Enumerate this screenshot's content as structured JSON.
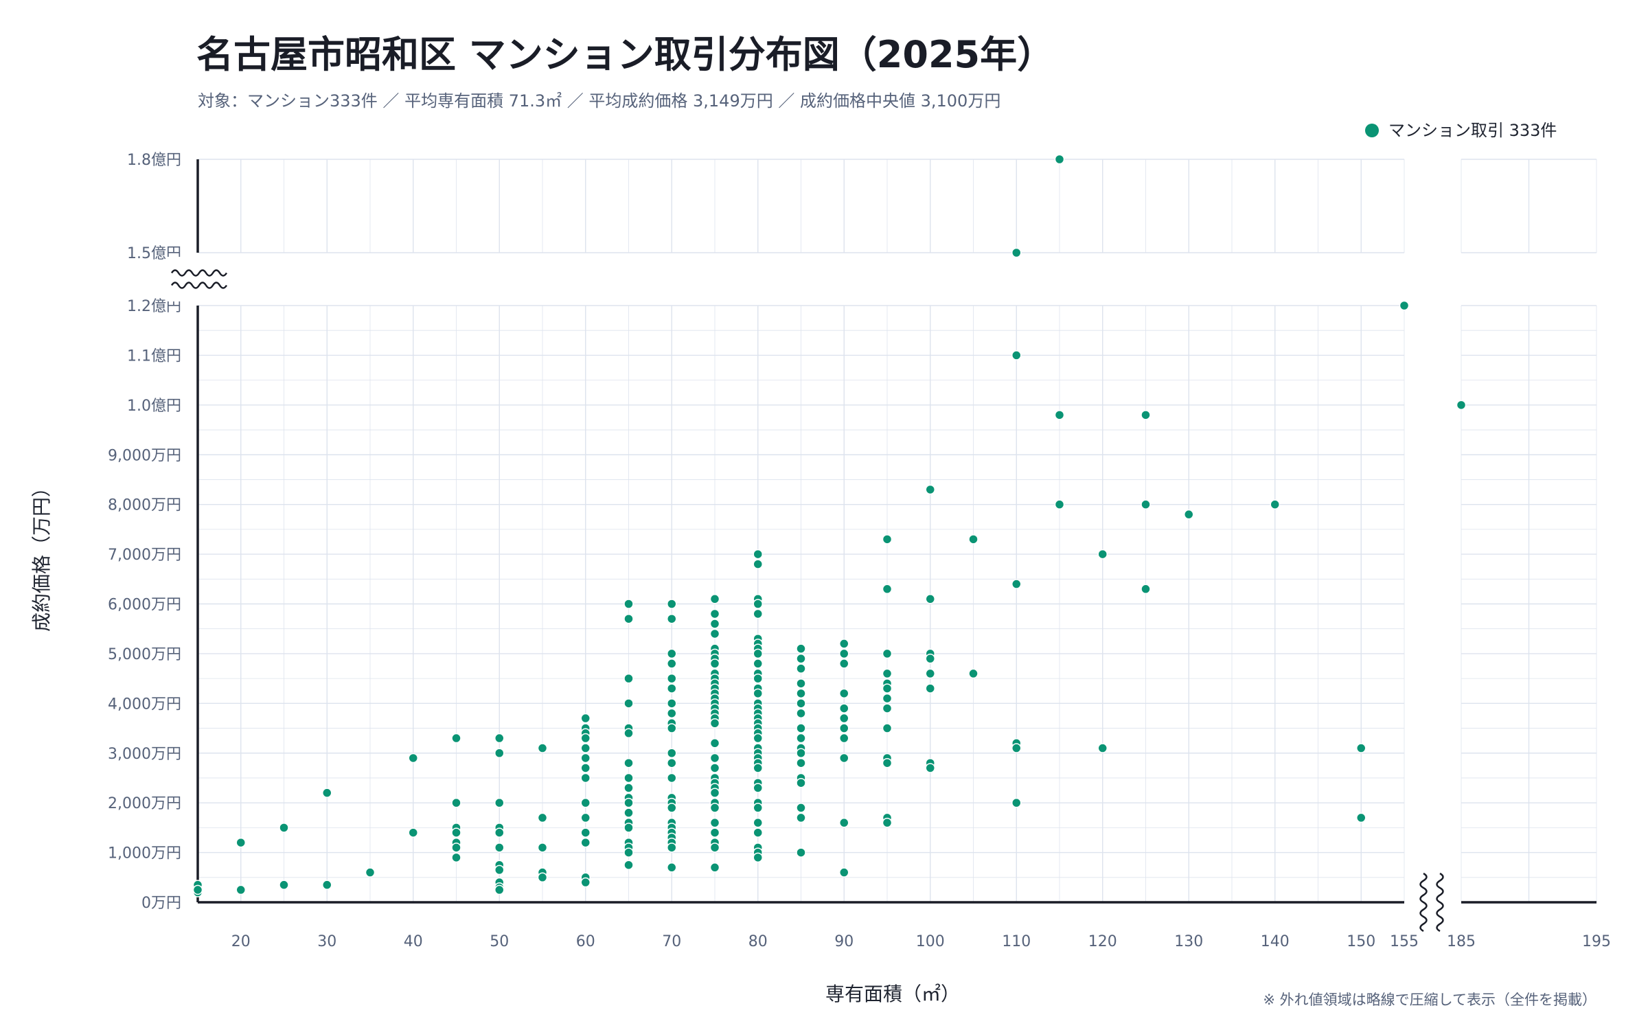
{
  "title": "名古屋市昭和区 マンション取引分布図（2025年）",
  "subtitle": "対象：マンション333件 ／ 平均専有面積 71.3㎡ ／ 平均成約価格 3,149万円 ／ 成約価格中央値 3,100万円",
  "legend_label": "マンション取引 333件",
  "note": "※ 外れ値領域は略線で圧縮して表示（全件を掲載）",
  "colors": {
    "point": "#0a9474",
    "grid": "#dde3ee",
    "axis": "#1a1d27",
    "text": "#56627a"
  },
  "chart_data": {
    "type": "scatter",
    "title": "名古屋市昭和区 マンション取引分布図（2025年）",
    "xlabel": "専有面積（㎡）",
    "ylabel": "成約価格（万円）",
    "xlim": [
      15,
      195
    ],
    "x_break": [
      155,
      185
    ],
    "ylim": [
      0,
      18000
    ],
    "y_break": [
      12000,
      15000
    ],
    "grid": true,
    "legend": "top-right",
    "x_ticks": [
      {
        "v": 20,
        "t": "20"
      },
      {
        "v": 30,
        "t": "30"
      },
      {
        "v": 40,
        "t": "40"
      },
      {
        "v": 50,
        "t": "50"
      },
      {
        "v": 60,
        "t": "60"
      },
      {
        "v": 70,
        "t": "70"
      },
      {
        "v": 80,
        "t": "80"
      },
      {
        "v": 90,
        "t": "90"
      },
      {
        "v": 100,
        "t": "100"
      },
      {
        "v": 110,
        "t": "110"
      },
      {
        "v": 120,
        "t": "120"
      },
      {
        "v": 130,
        "t": "130"
      },
      {
        "v": 140,
        "t": "140"
      },
      {
        "v": 150,
        "t": "150"
      },
      {
        "v": 155,
        "t": "155"
      },
      {
        "v": 185,
        "t": "185"
      },
      {
        "v": 195,
        "t": "195"
      }
    ],
    "y_ticks": [
      {
        "v": 0,
        "t": "0万円"
      },
      {
        "v": 1000,
        "t": "1,000万円"
      },
      {
        "v": 2000,
        "t": "2,000万円"
      },
      {
        "v": 3000,
        "t": "3,000万円"
      },
      {
        "v": 4000,
        "t": "4,000万円"
      },
      {
        "v": 5000,
        "t": "5,000万円"
      },
      {
        "v": 6000,
        "t": "6,000万円"
      },
      {
        "v": 7000,
        "t": "7,000万円"
      },
      {
        "v": 8000,
        "t": "8,000万円"
      },
      {
        "v": 9000,
        "t": "9,000万円"
      },
      {
        "v": 10000,
        "t": "1.0億円"
      },
      {
        "v": 11000,
        "t": "1.1億円"
      },
      {
        "v": 12000,
        "t": "1.2億円"
      },
      {
        "v": 15000,
        "t": "1.5億円"
      },
      {
        "v": 18000,
        "t": "1.8億円"
      }
    ],
    "series": [
      {
        "name": "マンション取引 333件",
        "points": [
          [
            15,
            350
          ],
          [
            15,
            200
          ],
          [
            15,
            250
          ],
          [
            20,
            1200
          ],
          [
            20,
            250
          ],
          [
            25,
            1500
          ],
          [
            25,
            350
          ],
          [
            30,
            2200
          ],
          [
            30,
            350
          ],
          [
            35,
            600
          ],
          [
            40,
            2900
          ],
          [
            40,
            1400
          ],
          [
            45,
            3300
          ],
          [
            45,
            2000
          ],
          [
            45,
            1500
          ],
          [
            45,
            1400
          ],
          [
            45,
            1200
          ],
          [
            45,
            1100
          ],
          [
            45,
            900
          ],
          [
            50,
            3300
          ],
          [
            50,
            3000
          ],
          [
            50,
            2000
          ],
          [
            50,
            1500
          ],
          [
            50,
            1400
          ],
          [
            50,
            1100
          ],
          [
            50,
            750
          ],
          [
            50,
            650
          ],
          [
            50,
            400
          ],
          [
            50,
            300
          ],
          [
            50,
            250
          ],
          [
            55,
            3100
          ],
          [
            55,
            1700
          ],
          [
            55,
            1100
          ],
          [
            55,
            600
          ],
          [
            55,
            500
          ],
          [
            60,
            3700
          ],
          [
            60,
            3500
          ],
          [
            60,
            3400
          ],
          [
            60,
            3300
          ],
          [
            60,
            3100
          ],
          [
            60,
            2900
          ],
          [
            60,
            2700
          ],
          [
            60,
            2500
          ],
          [
            60,
            2000
          ],
          [
            60,
            1700
          ],
          [
            60,
            1400
          ],
          [
            60,
            1200
          ],
          [
            60,
            500
          ],
          [
            60,
            400
          ],
          [
            65,
            6000
          ],
          [
            65,
            5700
          ],
          [
            65,
            4500
          ],
          [
            65,
            4000
          ],
          [
            65,
            3500
          ],
          [
            65,
            3400
          ],
          [
            65,
            2800
          ],
          [
            65,
            2500
          ],
          [
            65,
            2300
          ],
          [
            65,
            2100
          ],
          [
            65,
            2000
          ],
          [
            65,
            1800
          ],
          [
            65,
            1600
          ],
          [
            65,
            1500
          ],
          [
            65,
            1200
          ],
          [
            65,
            1100
          ],
          [
            65,
            1000
          ],
          [
            65,
            750
          ],
          [
            70,
            6000
          ],
          [
            70,
            5700
          ],
          [
            70,
            5000
          ],
          [
            70,
            4800
          ],
          [
            70,
            4500
          ],
          [
            70,
            4300
          ],
          [
            70,
            4000
          ],
          [
            70,
            3800
          ],
          [
            70,
            3600
          ],
          [
            70,
            3500
          ],
          [
            70,
            3000
          ],
          [
            70,
            2800
          ],
          [
            70,
            2500
          ],
          [
            70,
            2100
          ],
          [
            70,
            2000
          ],
          [
            70,
            1900
          ],
          [
            70,
            1600
          ],
          [
            70,
            1500
          ],
          [
            70,
            1400
          ],
          [
            70,
            1300
          ],
          [
            70,
            1200
          ],
          [
            70,
            1100
          ],
          [
            70,
            700
          ],
          [
            75,
            6100
          ],
          [
            75,
            5800
          ],
          [
            75,
            5600
          ],
          [
            75,
            5400
          ],
          [
            75,
            5100
          ],
          [
            75,
            5000
          ],
          [
            75,
            4900
          ],
          [
            75,
            4800
          ],
          [
            75,
            4600
          ],
          [
            75,
            4500
          ],
          [
            75,
            4400
          ],
          [
            75,
            4300
          ],
          [
            75,
            4200
          ],
          [
            75,
            4100
          ],
          [
            75,
            4000
          ],
          [
            75,
            3900
          ],
          [
            75,
            3800
          ],
          [
            75,
            3700
          ],
          [
            75,
            3600
          ],
          [
            75,
            3200
          ],
          [
            75,
            2900
          ],
          [
            75,
            2700
          ],
          [
            75,
            2500
          ],
          [
            75,
            2400
          ],
          [
            75,
            2300
          ],
          [
            75,
            2200
          ],
          [
            75,
            2000
          ],
          [
            75,
            1900
          ],
          [
            75,
            1600
          ],
          [
            75,
            1400
          ],
          [
            75,
            1200
          ],
          [
            75,
            1100
          ],
          [
            75,
            700
          ],
          [
            80,
            7000
          ],
          [
            80,
            6800
          ],
          [
            80,
            6100
          ],
          [
            80,
            6000
          ],
          [
            80,
            5800
          ],
          [
            80,
            5300
          ],
          [
            80,
            5200
          ],
          [
            80,
            5100
          ],
          [
            80,
            5000
          ],
          [
            80,
            4800
          ],
          [
            80,
            4600
          ],
          [
            80,
            4500
          ],
          [
            80,
            4300
          ],
          [
            80,
            4200
          ],
          [
            80,
            4000
          ],
          [
            80,
            3900
          ],
          [
            80,
            3800
          ],
          [
            80,
            3700
          ],
          [
            80,
            3600
          ],
          [
            80,
            3500
          ],
          [
            80,
            3400
          ],
          [
            80,
            3300
          ],
          [
            80,
            3100
          ],
          [
            80,
            3000
          ],
          [
            80,
            2900
          ],
          [
            80,
            2800
          ],
          [
            80,
            2700
          ],
          [
            80,
            2400
          ],
          [
            80,
            2300
          ],
          [
            80,
            2000
          ],
          [
            80,
            1900
          ],
          [
            80,
            1600
          ],
          [
            80,
            1400
          ],
          [
            80,
            1100
          ],
          [
            80,
            1000
          ],
          [
            80,
            900
          ],
          [
            85,
            5100
          ],
          [
            85,
            4900
          ],
          [
            85,
            4700
          ],
          [
            85,
            4400
          ],
          [
            85,
            4200
          ],
          [
            85,
            4000
          ],
          [
            85,
            3800
          ],
          [
            85,
            3500
          ],
          [
            85,
            3300
          ],
          [
            85,
            3100
          ],
          [
            85,
            3000
          ],
          [
            85,
            2800
          ],
          [
            85,
            2500
          ],
          [
            85,
            2400
          ],
          [
            85,
            1900
          ],
          [
            85,
            1700
          ],
          [
            85,
            1000
          ],
          [
            90,
            5200
          ],
          [
            90,
            5000
          ],
          [
            90,
            4800
          ],
          [
            90,
            4200
          ],
          [
            90,
            3900
          ],
          [
            90,
            3700
          ],
          [
            90,
            3500
          ],
          [
            90,
            3300
          ],
          [
            90,
            2900
          ],
          [
            90,
            1600
          ],
          [
            90,
            600
          ],
          [
            95,
            7300
          ],
          [
            95,
            6300
          ],
          [
            95,
            5000
          ],
          [
            95,
            4600
          ],
          [
            95,
            4400
          ],
          [
            95,
            4300
          ],
          [
            95,
            4100
          ],
          [
            95,
            3900
          ],
          [
            95,
            3500
          ],
          [
            95,
            2900
          ],
          [
            95,
            2800
          ],
          [
            95,
            1700
          ],
          [
            95,
            1600
          ],
          [
            100,
            8300
          ],
          [
            100,
            6100
          ],
          [
            100,
            5000
          ],
          [
            100,
            4900
          ],
          [
            100,
            4600
          ],
          [
            100,
            4300
          ],
          [
            100,
            2800
          ],
          [
            100,
            2700
          ],
          [
            105,
            7300
          ],
          [
            105,
            4600
          ],
          [
            110,
            15000
          ],
          [
            110,
            11000
          ],
          [
            110,
            6400
          ],
          [
            110,
            3200
          ],
          [
            110,
            3100
          ],
          [
            110,
            2000
          ],
          [
            115,
            18000
          ],
          [
            115,
            9800
          ],
          [
            115,
            8000
          ],
          [
            120,
            7000
          ],
          [
            120,
            3100
          ],
          [
            125,
            9800
          ],
          [
            125,
            8000
          ],
          [
            125,
            6300
          ],
          [
            130,
            7800
          ],
          [
            140,
            8000
          ],
          [
            150,
            3100
          ],
          [
            150,
            1700
          ],
          [
            155,
            12000
          ],
          [
            185,
            10000
          ]
        ]
      }
    ]
  }
}
